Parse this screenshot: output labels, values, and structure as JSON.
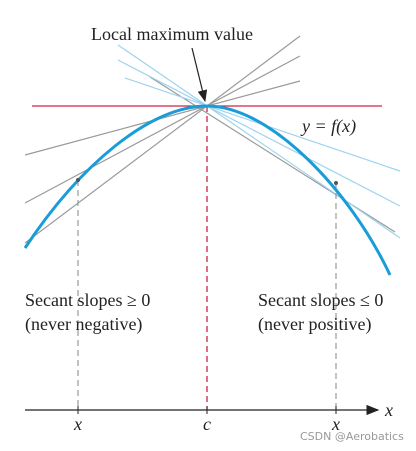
{
  "title": "Local maximum value",
  "curve_label": "y = f(x)",
  "left_note": {
    "line1": "Secant slopes ≥ 0",
    "line2": "(never negative)"
  },
  "right_note": {
    "line1": "Secant slopes ≤ 0",
    "line2": "(never positive)"
  },
  "axis": {
    "label": "x",
    "ticks": [
      "x",
      "c",
      "x"
    ]
  },
  "watermark": "CSDN @Aerobatics"
}
